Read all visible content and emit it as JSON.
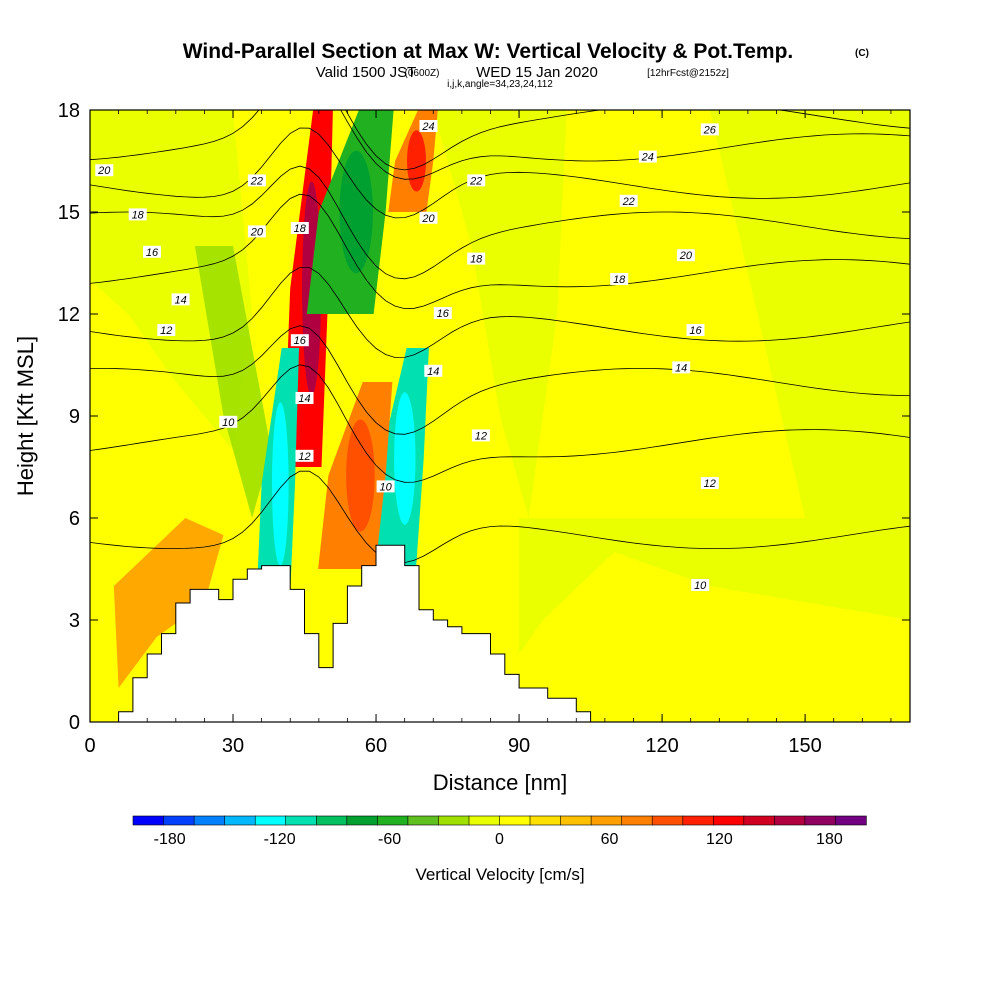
{
  "chart_data": {
    "type": "heatmap",
    "title": "Wind-Parallel Section at Max W: Vertical Velocity & Pot.Temp.",
    "title_mark": "(C)",
    "subtitle_pre": "Valid 1500 JST",
    "subtitle_utc": "(0600Z)",
    "subtitle_mid": "WED 15 Jan 2020",
    "subtitle_fcst": "[12hrFcst@2152z]",
    "subtitle2": "i,j,k,angle=34,23,24,112",
    "xlabel": "Distance [nm]",
    "ylabel": "Height [Kft MSL]",
    "xlim": [
      0,
      172
    ],
    "ylim": [
      0,
      18
    ],
    "xticks": [
      0,
      30,
      60,
      90,
      120,
      150
    ],
    "yticks": [
      0,
      3,
      6,
      9,
      12,
      15,
      18
    ],
    "colorbar": {
      "title": "Vertical Velocity [cm/s]",
      "ticks": [
        -180,
        -120,
        -60,
        0,
        60,
        120,
        180
      ],
      "bounds": [
        -200,
        200
      ],
      "colors": [
        "#0000ff",
        "#0040ff",
        "#0080ff",
        "#00b8ff",
        "#00ffff",
        "#00e0b0",
        "#00c060",
        "#00a030",
        "#20b020",
        "#60c020",
        "#a0e000",
        "#e8ff00",
        "#ffff00",
        "#ffe000",
        "#ffc000",
        "#ffa000",
        "#ff8000",
        "#ff5000",
        "#ff2000",
        "#ff0000",
        "#d00020",
        "#b00040",
        "#900060",
        "#700080"
      ]
    },
    "shading_legend": [
      {
        "range": [
          -120,
          -100
        ],
        "color": "#00ffff"
      },
      {
        "range": [
          -100,
          -80
        ],
        "color": "#00e0b0"
      },
      {
        "range": [
          -80,
          -60
        ],
        "color": "#00c060"
      },
      {
        "range": [
          -60,
          -40
        ],
        "color": "#00a030"
      },
      {
        "range": [
          -40,
          -20
        ],
        "color": "#20b020"
      },
      {
        "range": [
          -20,
          0
        ],
        "color": "#a0e000"
      },
      {
        "range": [
          0,
          20
        ],
        "color": "#e8ff00"
      },
      {
        "range": [
          20,
          40
        ],
        "color": "#ffff00"
      },
      {
        "range": [
          40,
          60
        ],
        "color": "#ffc000"
      },
      {
        "range": [
          60,
          80
        ],
        "color": "#ffa000"
      },
      {
        "range": [
          80,
          100
        ],
        "color": "#ff8000"
      },
      {
        "range": [
          100,
          120
        ],
        "color": "#ff5000"
      },
      {
        "range": [
          120,
          140
        ],
        "color": "#ff2000"
      }
    ],
    "vv_features": [
      {
        "name": "updraft-main",
        "x": [
          42,
          50
        ],
        "y": [
          7.5,
          18
        ],
        "value": 130
      },
      {
        "name": "downdraft-lee",
        "x": [
          36,
          43
        ],
        "y": [
          3.0,
          11.0
        ],
        "value": -110
      },
      {
        "name": "downdraft-upper",
        "x": [
          48,
          62
        ],
        "y": [
          12.0,
          18
        ],
        "value": -60
      },
      {
        "name": "downdraft-mid",
        "x": [
          61,
          70
        ],
        "y": [
          4.5,
          11.0
        ],
        "value": -110
      },
      {
        "name": "updraft-mid",
        "x": [
          50,
          62
        ],
        "y": [
          4.5,
          10.0
        ],
        "value": 70
      },
      {
        "name": "updraft-upper-right",
        "x": [
          64,
          72
        ],
        "y": [
          15.0,
          18
        ],
        "value": 80
      }
    ],
    "theta_labels": [
      {
        "x": 3,
        "y": 16.2,
        "text": "20"
      },
      {
        "x": 10,
        "y": 14.9,
        "text": "18"
      },
      {
        "x": 13,
        "y": 13.8,
        "text": "16"
      },
      {
        "x": 19,
        "y": 12.4,
        "text": "14"
      },
      {
        "x": 16,
        "y": 11.5,
        "text": "12"
      },
      {
        "x": 29,
        "y": 8.8,
        "text": "10"
      },
      {
        "x": 35,
        "y": 15.9,
        "text": "22"
      },
      {
        "x": 35,
        "y": 14.4,
        "text": "20"
      },
      {
        "x": 44,
        "y": 14.5,
        "text": "18"
      },
      {
        "x": 44,
        "y": 11.2,
        "text": "16"
      },
      {
        "x": 45,
        "y": 9.5,
        "text": "14"
      },
      {
        "x": 45,
        "y": 7.8,
        "text": "12"
      },
      {
        "x": 71,
        "y": 17.5,
        "text": "24"
      },
      {
        "x": 81,
        "y": 15.9,
        "text": "22"
      },
      {
        "x": 71,
        "y": 14.8,
        "text": "20"
      },
      {
        "x": 81,
        "y": 13.6,
        "text": "18"
      },
      {
        "x": 74,
        "y": 12.0,
        "text": "16"
      },
      {
        "x": 72,
        "y": 10.3,
        "text": "14"
      },
      {
        "x": 82,
        "y": 8.4,
        "text": "12"
      },
      {
        "x": 62,
        "y": 6.9,
        "text": "10"
      },
      {
        "x": 130,
        "y": 17.4,
        "text": "26"
      },
      {
        "x": 117,
        "y": 16.6,
        "text": "24"
      },
      {
        "x": 113,
        "y": 15.3,
        "text": "22"
      },
      {
        "x": 125,
        "y": 13.7,
        "text": "20"
      },
      {
        "x": 111,
        "y": 13.0,
        "text": "18"
      },
      {
        "x": 127,
        "y": 11.5,
        "text": "16"
      },
      {
        "x": 124,
        "y": 10.4,
        "text": "14"
      },
      {
        "x": 130,
        "y": 7.0,
        "text": "12"
      },
      {
        "x": 128,
        "y": 4.0,
        "text": "10"
      }
    ],
    "terrain": [
      [
        0,
        0
      ],
      [
        6,
        0
      ],
      [
        6,
        0.3
      ],
      [
        9,
        0.3
      ],
      [
        9,
        1.3
      ],
      [
        12,
        1.3
      ],
      [
        12,
        2.0
      ],
      [
        15,
        2.0
      ],
      [
        15,
        2.6
      ],
      [
        18,
        2.6
      ],
      [
        18,
        3.5
      ],
      [
        21,
        3.5
      ],
      [
        21,
        3.9
      ],
      [
        27,
        3.9
      ],
      [
        27,
        3.6
      ],
      [
        30,
        3.6
      ],
      [
        30,
        4.2
      ],
      [
        33,
        4.2
      ],
      [
        33,
        4.5
      ],
      [
        36,
        4.5
      ],
      [
        36,
        4.6
      ],
      [
        42,
        4.6
      ],
      [
        42,
        3.9
      ],
      [
        45,
        3.9
      ],
      [
        45,
        2.6
      ],
      [
        48,
        2.6
      ],
      [
        48,
        1.6
      ],
      [
        51,
        1.6
      ],
      [
        51,
        2.9
      ],
      [
        54,
        2.9
      ],
      [
        54,
        4.0
      ],
      [
        57,
        4.0
      ],
      [
        57,
        4.6
      ],
      [
        60,
        4.6
      ],
      [
        60,
        5.2
      ],
      [
        66,
        5.2
      ],
      [
        66,
        4.6
      ],
      [
        69,
        4.6
      ],
      [
        69,
        3.3
      ],
      [
        72,
        3.3
      ],
      [
        72,
        3.0
      ],
      [
        75,
        3.0
      ],
      [
        75,
        2.8
      ],
      [
        78,
        2.8
      ],
      [
        78,
        2.6
      ],
      [
        84,
        2.6
      ],
      [
        84,
        2.0
      ],
      [
        87,
        2.0
      ],
      [
        87,
        1.4
      ],
      [
        90,
        1.4
      ],
      [
        90,
        1.0
      ],
      [
        96,
        1.0
      ],
      [
        96,
        0.7
      ],
      [
        102,
        0.7
      ],
      [
        102,
        0.3
      ],
      [
        105,
        0.3
      ],
      [
        105,
        0
      ]
    ]
  }
}
